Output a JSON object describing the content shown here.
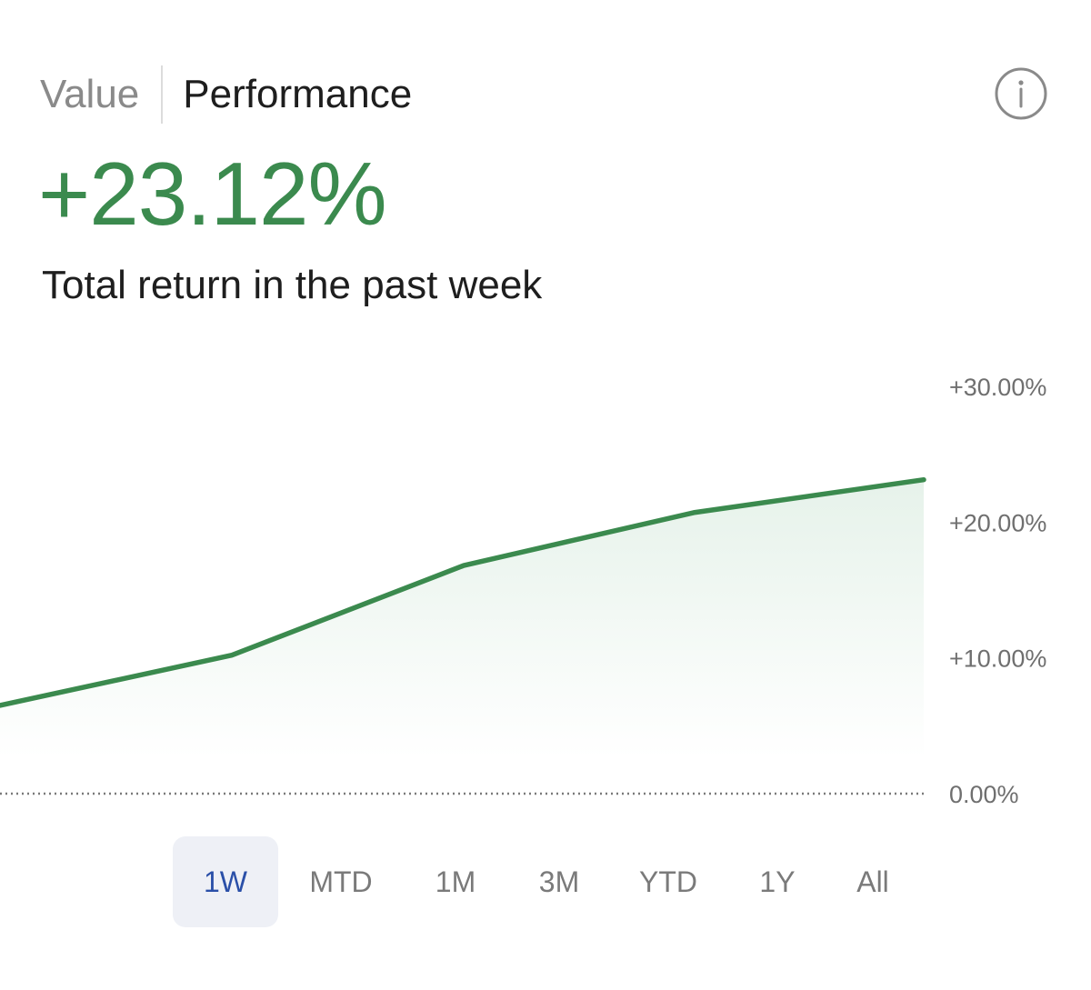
{
  "tabs": {
    "value_label": "Value",
    "performance_label": "Performance",
    "active": "performance"
  },
  "info_icon": "info-circle-icon",
  "summary": {
    "total_return": "+23.12%",
    "caption": "Total return in the past week"
  },
  "colors": {
    "positive": "#3b8a4e",
    "line": "#3b8a4e",
    "fill": "#e6f2ea",
    "active_range_bg": "#eef0f6",
    "active_range_text": "#2a4fa8",
    "axis_text": "#6f6f6f"
  },
  "chart_data": {
    "type": "area",
    "title": "",
    "xlabel": "",
    "ylabel": "",
    "x": [
      0,
      1,
      2,
      3,
      4
    ],
    "values": [
      6.5,
      10.2,
      16.8,
      20.7,
      23.12
    ],
    "ylim": [
      0,
      30
    ],
    "yticks": [
      0,
      10,
      20,
      30
    ],
    "ytick_labels": [
      "0.00%",
      "+10.00%",
      "+20.00%",
      "+30.00%"
    ],
    "baseline": 0,
    "baseline_style": "dotted",
    "axis_position": "right"
  },
  "ranges": {
    "items": [
      "1W",
      "MTD",
      "1M",
      "3M",
      "YTD",
      "1Y",
      "All"
    ],
    "selected": "1W"
  }
}
